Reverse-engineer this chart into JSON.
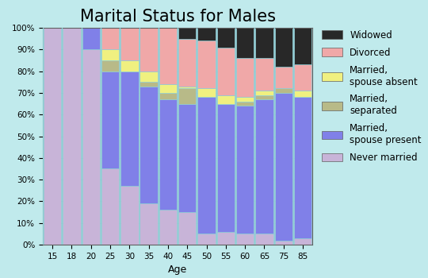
{
  "title": "Marital Status for Males",
  "xlabel": "Age",
  "age_labels": [
    "15",
    "18",
    "20",
    "25",
    "30",
    "35",
    "40",
    "45",
    "50",
    "55",
    "60",
    "65",
    "75",
    "85"
  ],
  "categories": [
    "Never married",
    "Married,\nspouse present",
    "Married,\nseparated",
    "Married,\nspouse absent",
    "Divorced",
    "Widowed"
  ],
  "colors": [
    "#c8b4d8",
    "#8080e8",
    "#b8ba88",
    "#f0f080",
    "#f0a8a8",
    "#282828"
  ],
  "data": {
    "Never married": [
      100,
      100,
      90,
      35,
      27,
      19,
      16,
      15,
      5,
      6,
      5,
      5,
      2,
      3
    ],
    "Married,\nspouse present": [
      0,
      0,
      10,
      45,
      53,
      54,
      51,
      50,
      63,
      59,
      59,
      62,
      68,
      65
    ],
    "Married,\nseparated": [
      0,
      0,
      0,
      5,
      0,
      2,
      3,
      7,
      0,
      0,
      2,
      2,
      2,
      0
    ],
    "Married,\nspouse absent": [
      0,
      0,
      0,
      5,
      5,
      5,
      4,
      1,
      4,
      4,
      2,
      2,
      0,
      3
    ],
    "Divorced": [
      0,
      0,
      0,
      10,
      15,
      20,
      26,
      22,
      22,
      22,
      18,
      15,
      10,
      12
    ],
    "Widowed": [
      0,
      0,
      0,
      0,
      0,
      0,
      0,
      5,
      6,
      9,
      14,
      14,
      18,
      17
    ]
  },
  "background_color": "#c0eaec",
  "plot_bg_color": "#c0eaec",
  "title_fontsize": 15,
  "grid_color": "#90ccd4",
  "legend_fontsize": 8.5
}
